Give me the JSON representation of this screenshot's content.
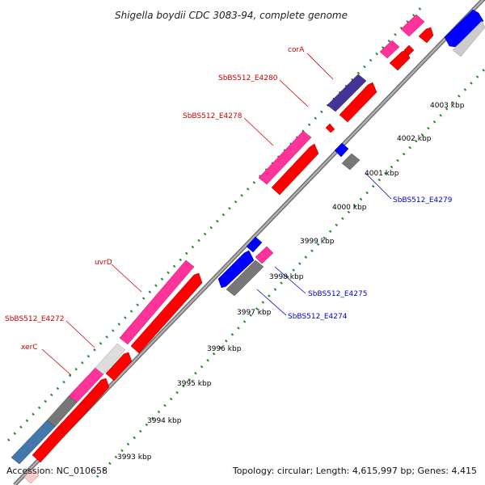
{
  "title": "Shigella boydii CDC 3083-94, complete genome",
  "footer": {
    "accession": "Accession: NC_010658",
    "summary": "Topology: circular; Length: 4,615,997 bp; Genes: 4,415"
  },
  "colors": {
    "backbone": "#999999",
    "tick": "#228B22",
    "forward_label": "#cc0000",
    "reverse_label": "#0000cc"
  },
  "scale": {
    "unit": "kbp",
    "labels": [
      "3993 kbp",
      "3994 kbp",
      "3995 kbp",
      "3996 kbp",
      "3997 kbp",
      "3998 kbp",
      "3999 kbp",
      "4000 kbp",
      "4001 kbp",
      "4002 kbp",
      "4003 kbp"
    ]
  },
  "gene_labels": {
    "forward": [
      "corA",
      "SbBS512_E4280",
      "SbBS512_E4278",
      "uvrD",
      "SbBS512_E4272",
      "xerC"
    ],
    "reverse": [
      "SbBS512_E4279",
      "SbBS512_E4275",
      "SbBS512_E4274"
    ]
  },
  "legend_colors": {
    "cds": "#ff0000",
    "gene_pink": "#ff3399",
    "reverse_gene": "#0000ff",
    "gray": "#777777",
    "light_gray": "#cccccc",
    "dark_blue": "#443399",
    "steel_blue": "#4477aa"
  }
}
